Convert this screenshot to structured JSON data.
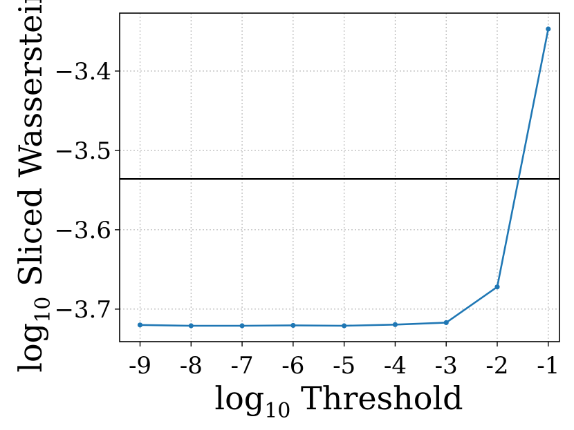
{
  "chart_data": {
    "type": "line",
    "title": "",
    "xlabel": {
      "prefix": "log",
      "sub": "10",
      "text": " Threshold"
    },
    "ylabel": {
      "prefix": "log",
      "sub": "10",
      "text": " Sliced Wasserstein"
    },
    "x_ticks": [
      -9,
      -8,
      -7,
      -6,
      -5,
      -4,
      -3,
      -2,
      -1
    ],
    "x_tick_labels": [
      "-9",
      "-8",
      "-7",
      "-6",
      "-5",
      "-4",
      "-3",
      "-2",
      "-1"
    ],
    "y_ticks": [
      -3.7,
      -3.6,
      -3.5,
      -3.4
    ],
    "y_tick_labels": [
      "−3.7",
      "−3.6",
      "−3.5",
      "−3.4"
    ],
    "xlim": [
      -9.4,
      -0.78
    ],
    "ylim": [
      -3.741,
      -3.327
    ],
    "grid": true,
    "series": [
      {
        "color": "#1f77b4",
        "x": [
          -9,
          -8,
          -7,
          -6,
          -5,
          -4,
          -3,
          -2,
          -1
        ],
        "y": [
          -3.72,
          -3.721,
          -3.721,
          -3.7205,
          -3.721,
          -3.7195,
          -3.717,
          -3.672,
          -3.347
        ]
      }
    ],
    "hline": {
      "y": -3.536,
      "color": "#000000"
    }
  }
}
